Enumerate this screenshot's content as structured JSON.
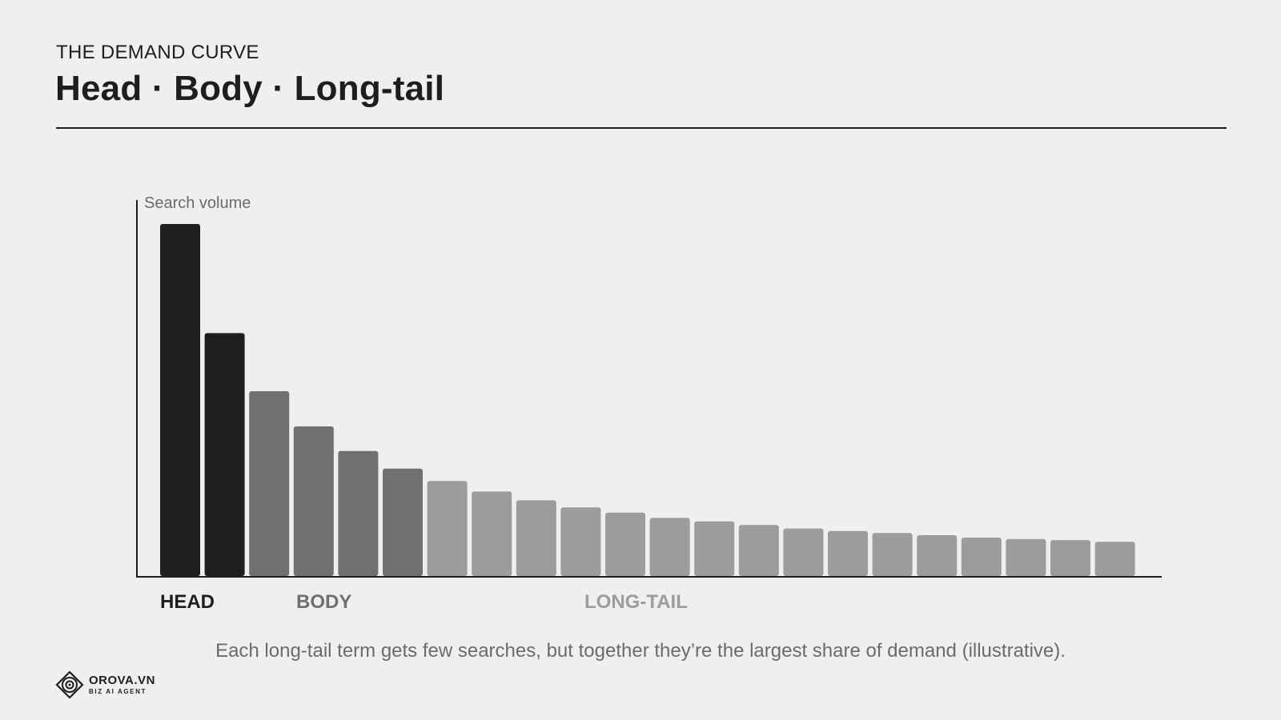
{
  "header": {
    "eyebrow": "THE DEMAND CURVE",
    "title": "Head · Body · Long-tail"
  },
  "chart_data": {
    "type": "bar",
    "title": "Head · Body · Long-tail",
    "ylabel": "Search volume",
    "xlabel": "",
    "ylim": [
      0,
      100
    ],
    "values": [
      100,
      69,
      52.5,
      42.5,
      35.5,
      30.5,
      27,
      24,
      21.5,
      19.5,
      18,
      16.5,
      15.5,
      14.5,
      13.5,
      12.8,
      12.2,
      11.6,
      10.9,
      10.5,
      10.2,
      9.7
    ],
    "segments": [
      {
        "name": "HEAD",
        "start": 0,
        "count": 2,
        "color": "#1e1e1e"
      },
      {
        "name": "BODY",
        "start": 2,
        "count": 4,
        "color": "#707070"
      },
      {
        "name": "LONG-TAIL",
        "start": 6,
        "count": 16,
        "color": "#9c9c9c"
      }
    ],
    "grid": false
  },
  "caption": "Each long-tail term gets few searches, but together they’re the largest share of demand (illustrative).",
  "brand": {
    "name": "OROVA.VN",
    "tagline": "BIZ AI AGENT"
  }
}
